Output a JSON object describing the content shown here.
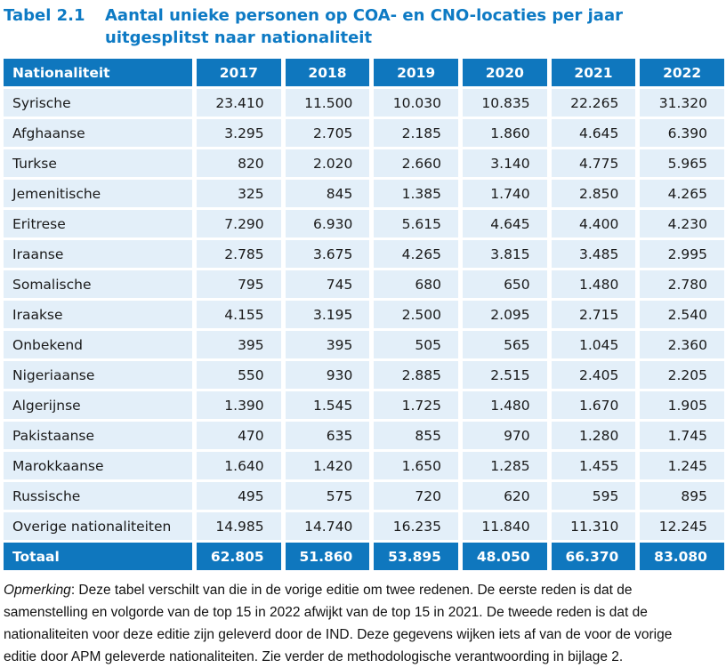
{
  "title": {
    "label": "Tabel 2.1",
    "line1": "Aantal unieke personen op COA- en CNO-locaties per jaar",
    "line2": "uitgesplitst naar nationaliteit"
  },
  "colors": {
    "accent_blue": "#0F77BE",
    "title_blue": "#0D7AC4",
    "row_fill": "#E3EFF9",
    "text": "#1A1A1A"
  },
  "table": {
    "columns": [
      "Nationaliteit",
      "2017",
      "2018",
      "2019",
      "2020",
      "2021",
      "2022"
    ],
    "rows": [
      {
        "name": "Syrische",
        "values": [
          "23.410",
          "11.500",
          "10.030",
          "10.835",
          "22.265",
          "31.320"
        ]
      },
      {
        "name": "Afghaanse",
        "values": [
          "3.295",
          "2.705",
          "2.185",
          "1.860",
          "4.645",
          "6.390"
        ]
      },
      {
        "name": "Turkse",
        "values": [
          "820",
          "2.020",
          "2.660",
          "3.140",
          "4.775",
          "5.965"
        ]
      },
      {
        "name": "Jemenitische",
        "values": [
          "325",
          "845",
          "1.385",
          "1.740",
          "2.850",
          "4.265"
        ]
      },
      {
        "name": "Eritrese",
        "values": [
          "7.290",
          "6.930",
          "5.615",
          "4.645",
          "4.400",
          "4.230"
        ]
      },
      {
        "name": "Iraanse",
        "values": [
          "2.785",
          "3.675",
          "4.265",
          "3.815",
          "3.485",
          "2.995"
        ]
      },
      {
        "name": "Somalische",
        "values": [
          "795",
          "745",
          "680",
          "650",
          "1.480",
          "2.780"
        ]
      },
      {
        "name": "Iraakse",
        "values": [
          "4.155",
          "3.195",
          "2.500",
          "2.095",
          "2.715",
          "2.540"
        ]
      },
      {
        "name": "Onbekend",
        "values": [
          "395",
          "395",
          "505",
          "565",
          "1.045",
          "2.360"
        ]
      },
      {
        "name": "Nigeriaanse",
        "values": [
          "550",
          "930",
          "2.885",
          "2.515",
          "2.405",
          "2.205"
        ]
      },
      {
        "name": "Algerijnse",
        "values": [
          "1.390",
          "1.545",
          "1.725",
          "1.480",
          "1.670",
          "1.905"
        ]
      },
      {
        "name": "Pakistaanse",
        "values": [
          "470",
          "635",
          "855",
          "970",
          "1.280",
          "1.745"
        ]
      },
      {
        "name": "Marokkaanse",
        "values": [
          "1.640",
          "1.420",
          "1.650",
          "1.285",
          "1.455",
          "1.245"
        ]
      },
      {
        "name": "Russische",
        "values": [
          "495",
          "575",
          "720",
          "620",
          "595",
          "895"
        ]
      },
      {
        "name": "Overige nationaliteiten",
        "values": [
          "14.985",
          "14.740",
          "16.235",
          "11.840",
          "11.310",
          "12.245"
        ]
      }
    ],
    "total": {
      "name": "Totaal",
      "values": [
        "62.805",
        "51.860",
        "53.895",
        "48.050",
        "66.370",
        "83.080"
      ]
    }
  },
  "note": {
    "label": "Opmerking",
    "line1_rest": ": Deze tabel verschilt van die in de vorige editie om twee redenen. De eerste reden is dat de",
    "line2": "samenstelling en volgorde van de top 15 in 2022 afwijkt van de top 15 in 2021. De tweede reden is dat de",
    "line3": "nationaliteiten voor deze editie zijn geleverd door de IND. Deze gegevens wijken iets af van de voor de vorige",
    "line4": "editie door APM geleverde nationaliteiten. Zie verder de methodologische verantwoording in bijlage 2."
  }
}
